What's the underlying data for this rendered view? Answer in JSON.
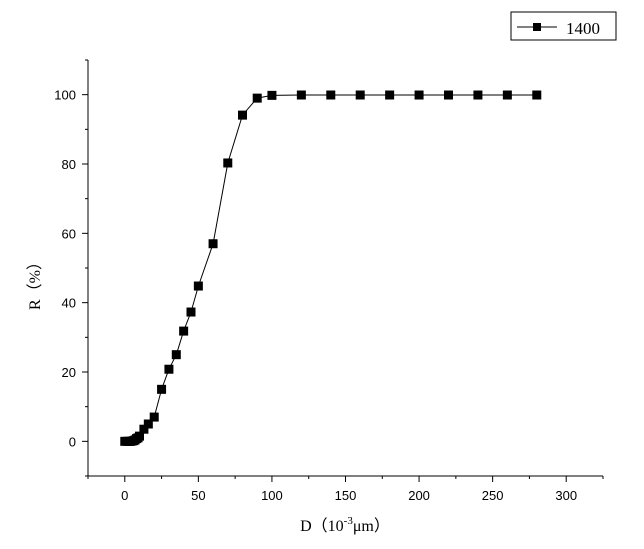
{
  "chart_data": {
    "type": "line",
    "xlabel": {
      "main": "D（10",
      "sup": "-3",
      "unit": "μm）"
    },
    "ylabel": "R（%）",
    "xlim": [
      -25,
      325
    ],
    "ylim": [
      -10,
      110
    ],
    "xticks": [
      0,
      50,
      100,
      150,
      200,
      250,
      300
    ],
    "yticks": [
      0,
      20,
      40,
      60,
      80,
      100
    ],
    "grid": false,
    "legend": "top-right",
    "series": [
      {
        "name": "1400",
        "marker": "square",
        "color": "#000000",
        "x": [
          0,
          2,
          3,
          4,
          5,
          6,
          7,
          8,
          9,
          10,
          13,
          16,
          20,
          25,
          30,
          35,
          40,
          45,
          50,
          60,
          70,
          80,
          90,
          100,
          120,
          140,
          160,
          180,
          200,
          220,
          240,
          260,
          280
        ],
        "y": [
          0,
          0,
          0,
          0,
          0.1,
          0.2,
          0.4,
          0.8,
          1.0,
          1.5,
          3.5,
          5.0,
          7.0,
          15.0,
          20.8,
          25.0,
          31.8,
          37.3,
          44.8,
          57.0,
          80.3,
          94.1,
          99.0,
          99.8,
          99.9,
          99.9,
          99.9,
          99.9,
          99.9,
          99.9,
          99.9,
          99.9,
          99.9
        ]
      }
    ]
  }
}
